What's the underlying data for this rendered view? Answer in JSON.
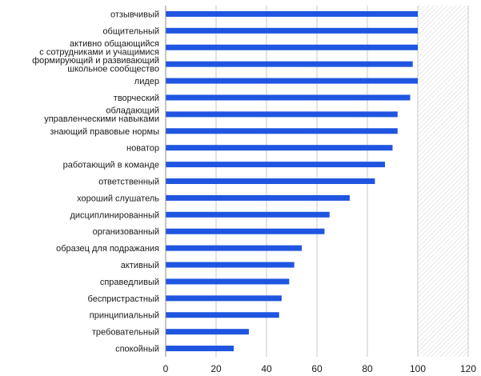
{
  "chart_data": {
    "type": "bar",
    "orientation": "horizontal",
    "categories": [
      "отзывчивый",
      "общительный",
      [
        "активно общающийся",
        "с сотрудниками и учащимися"
      ],
      [
        "формирующий и развивающий",
        "школьное сообщество"
      ],
      "лидер",
      "творческий",
      [
        "обладающий",
        "управленческими навыками"
      ],
      "знающий правовые нормы",
      "новатор",
      "работающий в команде",
      "ответственный",
      "хороший слушатель",
      "дисциплинированный",
      "организованный",
      "образец для подражания",
      "активный",
      "справедливый",
      "беспристрастный",
      "принципиальный",
      "требовательный",
      "спокойный"
    ],
    "values": [
      100,
      100,
      100,
      98,
      100,
      97,
      92,
      92,
      90,
      87,
      83,
      73,
      65,
      63,
      54,
      51,
      49,
      46,
      45,
      33,
      27
    ],
    "xlim": [
      0,
      120
    ],
    "xticks": [
      "0",
      "20",
      "40",
      "60",
      "80",
      "100",
      "120"
    ],
    "grid": true,
    "legend": "none",
    "title": "",
    "xlabel": "",
    "ylabel": "",
    "colors": {
      "bar": "#1f55e0",
      "grid": "#c8c8c8",
      "axis": "#8c8c8c",
      "hatch": "#d4d4d4"
    }
  }
}
